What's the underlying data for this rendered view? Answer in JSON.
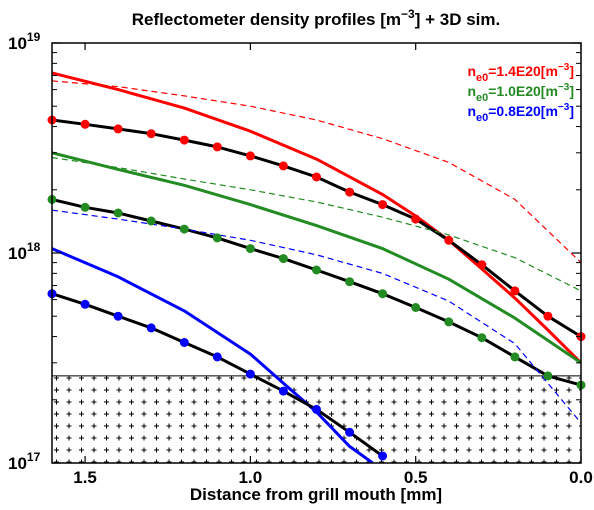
{
  "chart_data": {
    "type": "line",
    "title_main": "Reflectometer density profiles [m",
    "title_sup": "−3",
    "title_tail": "] + 3D sim.",
    "xlabel": "Distance from grill mouth [mm]",
    "ylabel": "",
    "x_reversed": true,
    "y_log": true,
    "xlim": [
      1.6,
      0.0
    ],
    "ylim": [
      1e+17,
      1e+19
    ],
    "x_ticks": [
      1.5,
      1.0,
      0.5,
      0.0
    ],
    "x_tick_labels": [
      "1.5",
      "1.0",
      "0.5",
      "0.0"
    ],
    "y_ticks": [
      {
        "value": 1e+17,
        "base": "10",
        "exp": "17"
      },
      {
        "value": 1e+18,
        "base": "10",
        "exp": "18"
      },
      {
        "value": 1e+19,
        "base": "10",
        "exp": "19"
      }
    ],
    "hatched_region_below": 2.6e+17,
    "legend_position": "top-right",
    "legend": [
      {
        "pre": "n",
        "sub": "e0",
        "post": "=1.4E20[m",
        "sup": "−3",
        "end": "]",
        "color": "#ff0000"
      },
      {
        "pre": "n",
        "sub": "e0",
        "post": "=1.0E20[m",
        "sup": "−3",
        "end": "]",
        "color": "#228b22"
      },
      {
        "pre": "n",
        "sub": "e0",
        "post": "=0.8E20[m",
        "sup": "−3",
        "end": "]",
        "color": "#0000ff"
      }
    ],
    "series": [
      {
        "group": "1.4E20",
        "style": "solid-thick",
        "color": "#ff0000",
        "x": [
          1.6,
          1.4,
          1.2,
          1.0,
          0.8,
          0.6,
          0.5,
          0.4,
          0.3,
          0.2,
          0.1,
          0.0
        ],
        "y": [
          7.2e+18,
          6e+18,
          4.9e+18,
          3.8e+18,
          2.8e+18,
          1.9e+18,
          1.5e+18,
          1.15e+18,
          8.4e+17,
          6.1e+17,
          4.3e+17,
          3e+17
        ]
      },
      {
        "group": "1.4E20",
        "style": "dashed",
        "color": "#ff0000",
        "x": [
          1.6,
          1.4,
          1.2,
          1.0,
          0.8,
          0.6,
          0.4,
          0.2,
          0.0
        ],
        "y": [
          6.6e+18,
          6.2e+18,
          5.6e+18,
          5e+18,
          4.3e+18,
          3.5e+18,
          2.7e+18,
          1.8e+18,
          9e+17
        ]
      },
      {
        "group": "1.4E20",
        "style": "measured",
        "color": "#ff0000",
        "x": [
          1.6,
          1.5,
          1.4,
          1.3,
          1.2,
          1.1,
          1.0,
          0.9,
          0.8,
          0.7,
          0.6,
          0.5,
          0.4,
          0.3,
          0.2,
          0.1,
          0.0
        ],
        "y": [
          4.3e+18,
          4.1e+18,
          3.9e+18,
          3.7e+18,
          3.45e+18,
          3.2e+18,
          2.9e+18,
          2.6e+18,
          2.3e+18,
          1.95e+18,
          1.7e+18,
          1.45e+18,
          1.15e+18,
          8.8e+17,
          6.6e+17,
          5e+17,
          4e+17
        ]
      },
      {
        "group": "1.0E20",
        "style": "solid-thick",
        "color": "#228b22",
        "x": [
          1.6,
          1.4,
          1.2,
          1.0,
          0.8,
          0.6,
          0.4,
          0.2,
          0.0
        ],
        "y": [
          3e+18,
          2.5e+18,
          2.1e+18,
          1.7e+18,
          1.35e+18,
          1.05e+18,
          7.5e+17,
          4.9e+17,
          3e+17
        ]
      },
      {
        "group": "1.0E20",
        "style": "dashed",
        "color": "#228b22",
        "x": [
          1.6,
          1.4,
          1.2,
          1.0,
          0.8,
          0.6,
          0.4,
          0.2,
          0.0
        ],
        "y": [
          2.85e+18,
          2.55e+18,
          2.25e+18,
          2e+18,
          1.75e+18,
          1.48e+18,
          1.22e+18,
          9.5e+17,
          6.6e+17
        ]
      },
      {
        "group": "1.0E20",
        "style": "measured",
        "color": "#228b22",
        "x": [
          1.6,
          1.5,
          1.4,
          1.3,
          1.2,
          1.1,
          1.0,
          0.9,
          0.8,
          0.7,
          0.6,
          0.5,
          0.4,
          0.3,
          0.2,
          0.1,
          0.0
        ],
        "y": [
          1.8e+18,
          1.65e+18,
          1.55e+18,
          1.42e+18,
          1.3e+18,
          1.18e+18,
          1.05e+18,
          9.4e+17,
          8.3e+17,
          7.3e+17,
          6.4e+17,
          5.5e+17,
          4.7e+17,
          3.95e+17,
          3.2e+17,
          2.6e+17,
          2.35e+17
        ]
      },
      {
        "group": "0.8E20",
        "style": "solid-thick",
        "color": "#0000ff",
        "x": [
          1.6,
          1.4,
          1.2,
          1.0,
          0.9,
          0.8,
          0.7,
          0.63
        ],
        "y": [
          1.05e+18,
          7.7e+17,
          5.3e+17,
          3.3e+17,
          2.4e+17,
          1.75e+17,
          1.2e+17,
          1e+17
        ]
      },
      {
        "group": "0.8E20",
        "style": "dashed",
        "color": "#0000ff",
        "x": [
          1.6,
          1.4,
          1.2,
          1.0,
          0.8,
          0.6,
          0.4,
          0.2,
          0.0
        ],
        "y": [
          1.6e+18,
          1.45e+18,
          1.3e+18,
          1.15e+18,
          9.8e+17,
          8e+17,
          5.9e+17,
          3.7e+17,
          1.55e+17
        ]
      },
      {
        "group": "0.8E20",
        "style": "measured",
        "color": "#0000ff",
        "x": [
          1.6,
          1.5,
          1.4,
          1.3,
          1.2,
          1.1,
          1.0,
          0.9,
          0.8,
          0.7,
          0.6
        ],
        "y": [
          6.4e+17,
          5.7e+17,
          5e+17,
          4.4e+17,
          3.75e+17,
          3.2e+17,
          2.65e+17,
          2.2e+17,
          1.8e+17,
          1.4e+17,
          1.08e+17
        ]
      }
    ]
  }
}
